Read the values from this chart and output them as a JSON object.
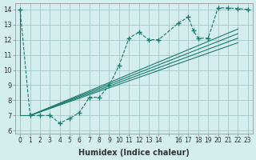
{
  "xlabel": "Humidex (Indice chaleur)",
  "bg_color": "#d4eeee",
  "grid_color": "#aacccc",
  "line_color": "#1a7a6e",
  "xlim": [
    -0.5,
    23.5
  ],
  "ylim": [
    5.8,
    14.4
  ],
  "x_ticks": [
    0,
    1,
    2,
    3,
    4,
    5,
    6,
    7,
    8,
    9,
    10,
    11,
    12,
    13,
    14,
    15,
    16,
    17,
    18,
    19,
    20,
    21,
    22,
    23
  ],
  "x_tick_labels": [
    "0",
    "1",
    "2",
    "3",
    "4",
    "5",
    "6",
    "7",
    "8",
    "9",
    "10",
    "11",
    "12",
    "13",
    "14",
    "",
    "16",
    "17",
    "18",
    "19",
    "20",
    "21",
    "22",
    "23"
  ],
  "y_ticks": [
    6,
    7,
    8,
    9,
    10,
    11,
    12,
    13,
    14
  ],
  "dotted_x": [
    0,
    1,
    2,
    3,
    4,
    5,
    6,
    7,
    8,
    9,
    10,
    11,
    12,
    13,
    14,
    16,
    17,
    17.5,
    18,
    19,
    20,
    21,
    22,
    23
  ],
  "dotted_y": [
    14,
    7,
    7,
    7,
    6.5,
    6.8,
    7.2,
    8.2,
    8.2,
    9.0,
    10.3,
    12.1,
    12.5,
    12.0,
    12.0,
    13.1,
    13.5,
    12.6,
    12.1,
    12.1,
    14.1,
    14.1,
    14.05,
    14.0
  ],
  "linear_lines": [
    {
      "x": [
        1,
        22
      ],
      "y": [
        7.0,
        11.8
      ]
    },
    {
      "x": [
        1,
        22
      ],
      "y": [
        7.0,
        12.1
      ]
    },
    {
      "x": [
        1,
        22
      ],
      "y": [
        7.0,
        12.4
      ]
    },
    {
      "x": [
        1,
        22
      ],
      "y": [
        7.0,
        12.7
      ]
    }
  ]
}
